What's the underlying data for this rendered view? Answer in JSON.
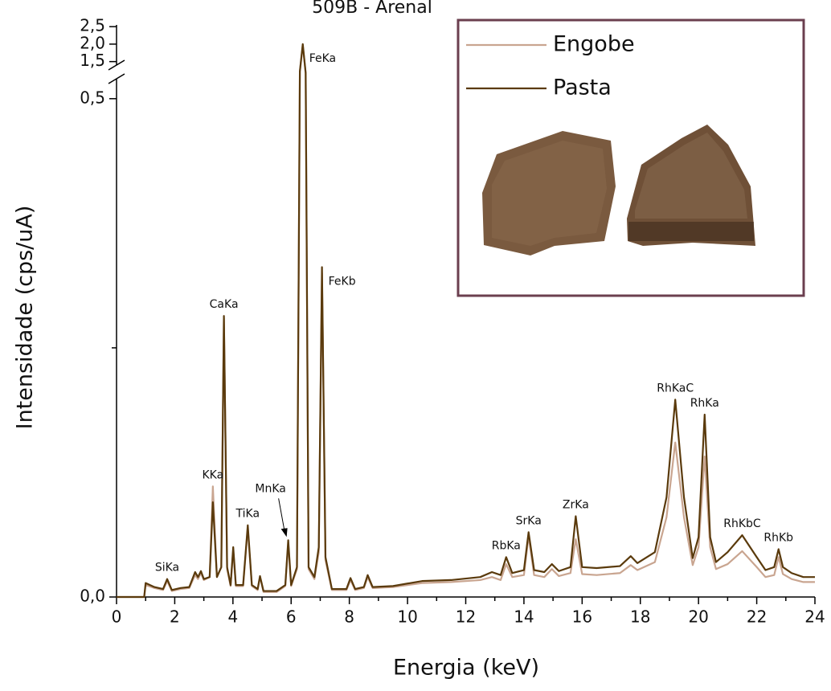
{
  "chart_data": {
    "type": "line",
    "title": "509B - Arenal",
    "x_label": "Energia (keV)",
    "y_label": "Intensidade (cps/uA)",
    "xlim": [
      0,
      24
    ],
    "xticks": [
      0,
      2,
      4,
      6,
      8,
      10,
      12,
      14,
      16,
      18,
      20,
      22,
      24
    ],
    "xminorticks": [
      1,
      3,
      5,
      7,
      9,
      11,
      13,
      15,
      17,
      19,
      21,
      23
    ],
    "ylim": [
      0,
      2.55
    ],
    "ybreak": [
      0.52,
      1.4
    ],
    "yticks": [
      {
        "value": 0,
        "label": "0,0"
      },
      {
        "value": 0.5,
        "label": "0,5"
      },
      {
        "value": 1.5,
        "label": "1,5"
      },
      {
        "value": 2.0,
        "label": "2,0"
      },
      {
        "value": 2.5,
        "label": "2,5"
      }
    ],
    "yminorticks": [
      0.25
    ],
    "legend": "upper right",
    "x": [
      0,
      0.95,
      1.0,
      1.3,
      1.6,
      1.74,
      1.9,
      2.2,
      2.5,
      2.7,
      2.8,
      2.9,
      3.0,
      3.2,
      3.31,
      3.45,
      3.6,
      3.69,
      3.8,
      3.92,
      4.01,
      4.1,
      4.35,
      4.51,
      4.65,
      4.85,
      4.93,
      5.05,
      5.5,
      5.8,
      5.9,
      6.0,
      6.2,
      6.3,
      6.4,
      6.5,
      6.6,
      6.8,
      6.95,
      7.06,
      7.18,
      7.4,
      7.9,
      8.04,
      8.2,
      8.5,
      8.63,
      8.8,
      9.5,
      10.5,
      11.5,
      12.5,
      12.9,
      13.2,
      13.39,
      13.6,
      14.0,
      14.16,
      14.35,
      14.7,
      14.96,
      15.2,
      15.6,
      15.78,
      16.0,
      16.5,
      17.3,
      17.67,
      17.9,
      18.5,
      18.9,
      19.2,
      19.5,
      19.8,
      20.0,
      20.21,
      20.4,
      20.6,
      21.0,
      21.5,
      22.0,
      22.3,
      22.6,
      22.75,
      22.9,
      23.2,
      23.6,
      24
    ],
    "series": [
      {
        "name": "Engobe",
        "color": "#c9a590",
        "values": [
          0,
          0,
          0.012,
          0.009,
          0.007,
          0.016,
          0.006,
          0.008,
          0.009,
          0.022,
          0.018,
          0.024,
          0.017,
          0.02,
          0.111,
          0.02,
          0.03,
          0.28,
          0.028,
          0.011,
          0.047,
          0.011,
          0.011,
          0.069,
          0.011,
          0.007,
          0.02,
          0.005,
          0.005,
          0.011,
          0.054,
          0.011,
          0.028,
          0.95,
          1.97,
          0.85,
          0.028,
          0.018,
          0.045,
          0.325,
          0.037,
          0.007,
          0.007,
          0.017,
          0.007,
          0.009,
          0.02,
          0.009,
          0.01,
          0.014,
          0.015,
          0.017,
          0.02,
          0.017,
          0.033,
          0.02,
          0.022,
          0.061,
          0.022,
          0.02,
          0.028,
          0.021,
          0.024,
          0.058,
          0.023,
          0.022,
          0.024,
          0.032,
          0.027,
          0.035,
          0.08,
          0.155,
          0.08,
          0.032,
          0.05,
          0.141,
          0.05,
          0.028,
          0.033,
          0.046,
          0.03,
          0.02,
          0.022,
          0.04,
          0.023,
          0.018,
          0.015,
          0.015
        ]
      },
      {
        "name": "Pasta",
        "color": "#5a3a0c",
        "values": [
          0,
          0,
          0.014,
          0.01,
          0.008,
          0.018,
          0.007,
          0.009,
          0.01,
          0.025,
          0.02,
          0.026,
          0.018,
          0.02,
          0.095,
          0.02,
          0.03,
          0.282,
          0.03,
          0.012,
          0.05,
          0.012,
          0.012,
          0.072,
          0.012,
          0.008,
          0.021,
          0.006,
          0.006,
          0.012,
          0.057,
          0.012,
          0.03,
          1.0,
          2.0,
          0.9,
          0.03,
          0.02,
          0.05,
          0.331,
          0.04,
          0.008,
          0.008,
          0.019,
          0.008,
          0.01,
          0.022,
          0.01,
          0.011,
          0.016,
          0.017,
          0.02,
          0.025,
          0.022,
          0.04,
          0.024,
          0.027,
          0.065,
          0.027,
          0.025,
          0.033,
          0.026,
          0.03,
          0.081,
          0.03,
          0.029,
          0.031,
          0.041,
          0.034,
          0.045,
          0.1,
          0.198,
          0.1,
          0.039,
          0.06,
          0.183,
          0.06,
          0.035,
          0.045,
          0.062,
          0.04,
          0.027,
          0.03,
          0.048,
          0.03,
          0.024,
          0.02,
          0.02
        ]
      }
    ],
    "annotations": [
      {
        "text": "SiKa",
        "x": 1.74,
        "y": 0.018
      },
      {
        "text": "KKa",
        "x": 3.31,
        "y": 0.111
      },
      {
        "text": "CaKa",
        "x": 3.69,
        "y": 0.282
      },
      {
        "text": "TiKa",
        "x": 4.51,
        "y": 0.072
      },
      {
        "text": "MnKa",
        "x": 5.9,
        "y": 0.057,
        "arrow": true
      },
      {
        "text": "FeKa",
        "x": 6.4,
        "y": 2.0,
        "side": "right"
      },
      {
        "text": "FeKb",
        "x": 7.06,
        "y": 0.331,
        "side": "right"
      },
      {
        "text": "RbKa",
        "x": 13.39,
        "y": 0.04
      },
      {
        "text": "SrKa",
        "x": 14.16,
        "y": 0.065
      },
      {
        "text": "ZrKa",
        "x": 15.78,
        "y": 0.081
      },
      {
        "text": "RhKaC",
        "x": 19.2,
        "y": 0.198
      },
      {
        "text": "RhKa",
        "x": 20.21,
        "y": 0.183
      },
      {
        "text": "RhKbC",
        "x": 21.5,
        "y": 0.062
      },
      {
        "text": "RhKb",
        "x": 22.75,
        "y": 0.048
      }
    ]
  }
}
